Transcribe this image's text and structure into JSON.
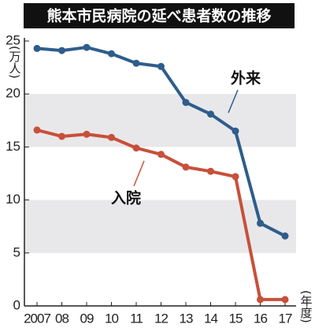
{
  "chart_data": {
    "type": "line",
    "title": "熊本市民病院の延べ患者数の推移",
    "y_unit_label": "(万人)",
    "x_unit_label": "(年度)",
    "categories": [
      "2007",
      "08",
      "09",
      "10",
      "11",
      "12",
      "13",
      "14",
      "15",
      "16",
      "17"
    ],
    "series": [
      {
        "name": "外来",
        "color": "#2e5d8c",
        "values": [
          24.3,
          24.1,
          24.4,
          23.8,
          22.9,
          22.6,
          19.2,
          18.1,
          16.5,
          7.8,
          6.6
        ]
      },
      {
        "name": "入院",
        "color": "#c8503a",
        "values": [
          16.6,
          16.0,
          16.2,
          15.9,
          14.9,
          14.3,
          13.1,
          12.7,
          12.2,
          0.6,
          0.6
        ]
      }
    ],
    "ylim": [
      0,
      25
    ],
    "yticks": [
      0,
      5,
      10,
      15,
      20,
      25
    ],
    "bands": [
      {
        "from": 5,
        "to": 10
      },
      {
        "from": 15,
        "to": 20
      }
    ],
    "band_color": "#e8e8ea"
  }
}
